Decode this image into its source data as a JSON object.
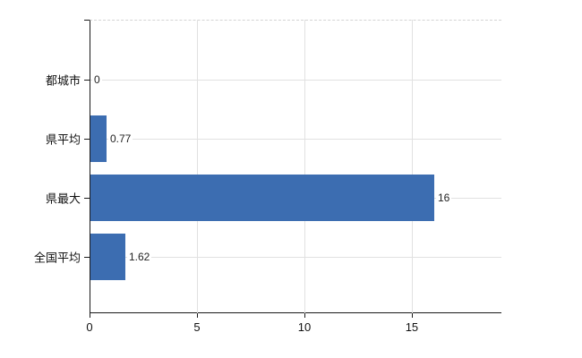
{
  "chart_data": {
    "type": "bar",
    "orientation": "horizontal",
    "title": "",
    "categories": [
      "都城市",
      "県平均",
      "県最大",
      "全国平均"
    ],
    "values": [
      0,
      0.77,
      16,
      1.62
    ],
    "value_labels": [
      "0",
      "0.77",
      "16",
      "1.62"
    ],
    "x_ticks": [
      0,
      5,
      10,
      15
    ],
    "x_tick_labels": [
      "0",
      "5",
      "10",
      "15"
    ],
    "xlim": [
      0,
      19.17
    ],
    "grid": true,
    "legend": false,
    "colors": {
      "bar": "#3c6db1",
      "axis": "#1a1a1a",
      "gridline": "#e1e1e1",
      "top_border": "#d4d4d4",
      "text": "#111111"
    }
  }
}
